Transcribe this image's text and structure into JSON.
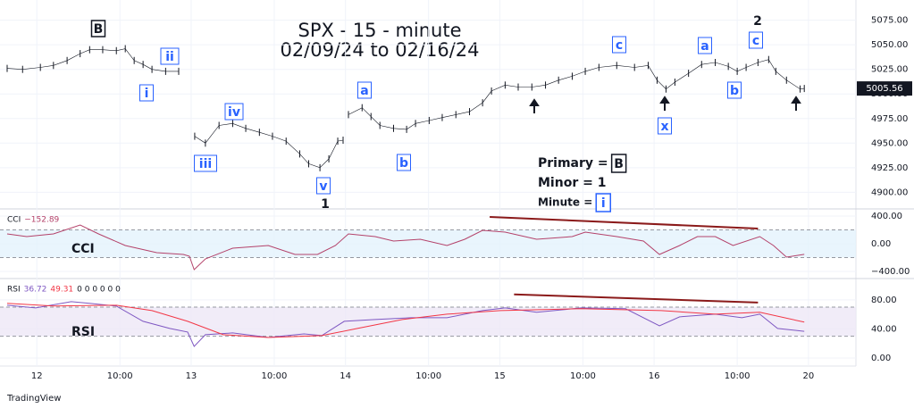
{
  "chart_data": [
    {
      "type": "ohlc",
      "title": "SPX - 15 - minute",
      "subtitle": "02/09/24 to 02/16/24",
      "color": "#131722",
      "xlim": [
        -5,
        138
      ],
      "xticks": [
        {
          "value": 0,
          "label": "12"
        },
        {
          "value": 14,
          "label": "10:00"
        },
        {
          "value": 26,
          "label": "13"
        },
        {
          "value": 40,
          "label": "10:00"
        },
        {
          "value": 52,
          "label": "14"
        },
        {
          "value": 66,
          "label": "10:00"
        },
        {
          "value": 78,
          "label": "15"
        },
        {
          "value": 92,
          "label": "10:00"
        },
        {
          "value": 104,
          "label": "16"
        },
        {
          "value": 118,
          "label": "10:00"
        },
        {
          "value": 130,
          "label": "20"
        }
      ],
      "ylim": [
        4884,
        5091
      ],
      "yticks": [
        {
          "value": 4900,
          "label": "4900.00"
        },
        {
          "value": 4925,
          "label": "4925.00"
        },
        {
          "value": 4950,
          "label": "4950.00"
        },
        {
          "value": 4975,
          "label": "4975.00"
        },
        {
          "value": 5000,
          "label": "5000.00"
        },
        {
          "value": 5025,
          "label": "5025.00"
        },
        {
          "value": 5050,
          "label": "5050.00"
        },
        {
          "value": 5075,
          "label": "5075.00"
        }
      ],
      "x": [
        -5,
        -2.4,
        0.6,
        2.8,
        5.1,
        7.3,
        8.9,
        11.1,
        13.4,
        14.9,
        16.4,
        17.9,
        19.4,
        21.7,
        23.9,
        25,
        26.6,
        28.4,
        30.7,
        33,
        35.2,
        37.5,
        39.7,
        42,
        44.3,
        45.8,
        47.7,
        49.2,
        50.7,
        51.6,
        52,
        52.5,
        54.8,
        56.3,
        57.8,
        60.1,
        62.3,
        63.8,
        66.1,
        68.3,
        70.6,
        72.9,
        75.1,
        76.6,
        78.9,
        81.1,
        83.4,
        85.7,
        87.9,
        90.2,
        92.4,
        94.7,
        97.7,
        100.7,
        103,
        104.5,
        106,
        107.5,
        109.8,
        112,
        114.3,
        116.5,
        118,
        119.5,
        121.5,
        123.3,
        124.5,
        126.3,
        128.6,
        129.3
      ],
      "values": [
        5026,
        5025,
        5027,
        5029,
        5034,
        5041,
        5045,
        5045,
        5044,
        5046,
        5034,
        5030,
        5025,
        5023,
        5023,
        null,
        4957,
        4950,
        4968,
        4970,
        4965,
        4961,
        4957,
        4952,
        4939,
        4929,
        4925,
        4934,
        4952,
        4953,
        null,
        4979,
        4986,
        4977,
        4968,
        4965,
        4964,
        4970,
        4973,
        4976,
        4979,
        4982,
        4991,
        5003,
        5009,
        5007,
        5007,
        5009,
        5014,
        5018,
        5023,
        5027,
        5029,
        5027,
        5029,
        5014,
        5005,
        5012,
        5021,
        5030,
        5032,
        5028,
        5023,
        5027,
        5032,
        5035,
        5023,
        5014,
        5005,
        5005.56
      ],
      "annotations": [
        {
          "text": "B",
          "style": "box-black"
        },
        {
          "text": "ii",
          "style": "box-blue"
        },
        {
          "text": "i",
          "style": "box-blue"
        },
        {
          "text": "iv",
          "style": "box-blue"
        },
        {
          "text": "iii",
          "style": "box-blue"
        },
        {
          "text": "v",
          "style": "box-blue"
        },
        {
          "text": "1",
          "style": "plain"
        },
        {
          "text": "a",
          "style": "box-blue"
        },
        {
          "text": "b",
          "style": "box-blue"
        },
        {
          "text": "c",
          "style": "box-blue"
        },
        {
          "text": "x",
          "style": "box-blue"
        },
        {
          "text": "a",
          "style": "box-blue"
        },
        {
          "text": "b",
          "style": "box-blue"
        },
        {
          "text": "c",
          "style": "box-blue"
        },
        {
          "text": "2",
          "style": "plain"
        }
      ],
      "wave_legend": [
        {
          "label": "Primary =",
          "mark": "B"
        },
        {
          "label": "Minor = 1"
        },
        {
          "label": "Minute =",
          "mark": "i"
        }
      ],
      "brand": "TradingView"
    },
    {
      "type": "line",
      "header": "CCI",
      "header_value": "−152.89",
      "label": "CCI",
      "color": "#b4426a",
      "band": [
        -200,
        200
      ],
      "ylim": [
        -490,
        490
      ],
      "yticks": [
        {
          "value": 400,
          "label": "400.00"
        },
        {
          "value": 0,
          "label": "0.00"
        },
        {
          "value": -400,
          "label": "−400.00"
        }
      ],
      "x": [
        -5,
        -1.7,
        2.8,
        7.3,
        10.4,
        14.9,
        20.2,
        24.7,
        25.7,
        26.5,
        28.4,
        33,
        39,
        43.5,
        47.3,
        50.3,
        52.5,
        57,
        60.1,
        64.6,
        69.1,
        72.1,
        75.1,
        78.9,
        84.2,
        90.2,
        92.4,
        97.7,
        102.2,
        104.9,
        108.3,
        111.3,
        114.3,
        117.3,
        121.8,
        124.1,
        126.3,
        129.3
      ],
      "values": [
        142,
        103,
        142,
        271,
        142,
        -26,
        -129,
        -155,
        -181,
        -374,
        -219,
        -65,
        -26,
        -155,
        -155,
        -26,
        142,
        103,
        39,
        65,
        -26,
        65,
        194,
        168,
        65,
        103,
        168,
        103,
        39,
        -155,
        -26,
        103,
        103,
        -26,
        103,
        -26,
        -194,
        -152.89
      ],
      "trendline": {
        "x": [
          76.3,
          121.5
        ],
        "values": [
          387,
          219
        ]
      }
    },
    {
      "type": "line",
      "header": "RSI",
      "header_extra": "0 0 0 0 0 0",
      "label": "RSI",
      "band": [
        30,
        70
      ],
      "ylim": [
        -11,
        108
      ],
      "yticks": [
        {
          "value": 80,
          "label": "80.00"
        },
        {
          "value": 40,
          "label": "40.00"
        },
        {
          "value": 0,
          "label": "0.00"
        }
      ],
      "series": [
        {
          "color": "#7e57c2",
          "x": [
            -5,
            -0.2,
            5.8,
            8.9,
            13.4,
            17.9,
            22.4,
            25.4,
            26.5,
            28.4,
            33,
            39,
            45,
            48,
            51.8,
            57,
            63.1,
            69.1,
            75.1,
            78.9,
            84.2,
            91.7,
            99.2,
            104.9,
            108.3,
            114.3,
            118.8,
            121.8,
            124.8,
            129.3
          ],
          "values": [
            72.6,
            68.9,
            77.5,
            75.1,
            71.4,
            50.5,
            40.6,
            35.7,
            16,
            32,
            34.5,
            28.3,
            33.2,
            30.8,
            50.5,
            52.9,
            55.4,
            55.4,
            65.2,
            68.9,
            62.8,
            68.9,
            67.7,
            44.3,
            56.6,
            60.3,
            55.4,
            60.3,
            40.6,
            36.72
          ]
        },
        {
          "color": "#f23645",
          "x": [
            -5,
            2.8,
            13.4,
            19.4,
            25.4,
            31.4,
            39,
            48,
            54,
            61.6,
            69.1,
            78.1,
            91.7,
            105.2,
            114.3,
            121.8,
            129.3
          ],
          "values": [
            75.1,
            71.4,
            72.6,
            65.2,
            50.5,
            32,
            28.3,
            30.8,
            40.6,
            52.9,
            60.3,
            65.2,
            67.7,
            65.2,
            60.3,
            62.8,
            49.31
          ]
        }
      ],
      "trendline": {
        "x": [
          80.4,
          121.5
        ],
        "values": [
          87.4,
          76.3
        ]
      }
    }
  ]
}
